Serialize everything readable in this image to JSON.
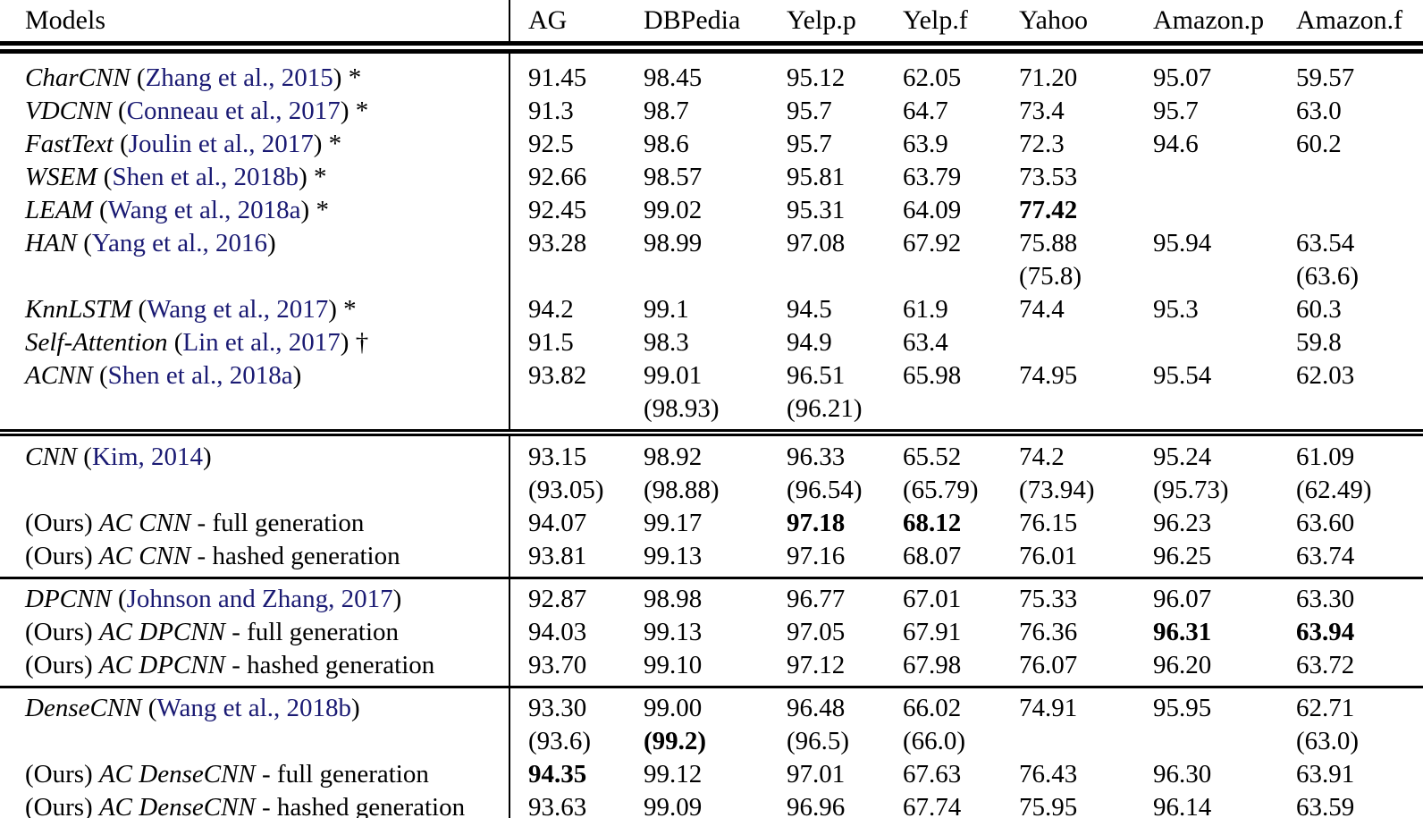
{
  "styles": {
    "citation_color": "#1a1a73",
    "text_color": "#000000",
    "background_color": "#ffffff"
  },
  "header": {
    "models_label": "Models",
    "datasets": [
      "AG",
      "DBPedia",
      "Yelp.p",
      "Yelp.f",
      "Yahoo",
      "Amazon.p",
      "Amazon.f"
    ]
  },
  "sections": [
    {
      "rows": [
        {
          "model": [
            {
              "t": "CharCNN",
              "s": "i"
            },
            {
              "t": " (",
              "s": "p"
            },
            {
              "t": "Zhang et al., 2015",
              "s": "c"
            },
            {
              "t": ") *",
              "s": "p"
            }
          ],
          "cells": [
            {
              "v": "91.45"
            },
            {
              "v": "98.45"
            },
            {
              "v": "95.12"
            },
            {
              "v": "62.05"
            },
            {
              "v": "71.20"
            },
            {
              "v": "95.07"
            },
            {
              "v": "59.57"
            }
          ]
        },
        {
          "model": [
            {
              "t": "VDCNN",
              "s": "i"
            },
            {
              "t": " (",
              "s": "p"
            },
            {
              "t": "Conneau et al., 2017",
              "s": "c"
            },
            {
              "t": ") *",
              "s": "p"
            }
          ],
          "cells": [
            {
              "v": "91.3"
            },
            {
              "v": "98.7"
            },
            {
              "v": "95.7"
            },
            {
              "v": "64.7"
            },
            {
              "v": "73.4"
            },
            {
              "v": "95.7"
            },
            {
              "v": "63.0"
            }
          ]
        },
        {
          "model": [
            {
              "t": "FastText",
              "s": "i"
            },
            {
              "t": " (",
              "s": "p"
            },
            {
              "t": "Joulin et al., 2017",
              "s": "c"
            },
            {
              "t": ") *",
              "s": "p"
            }
          ],
          "cells": [
            {
              "v": "92.5"
            },
            {
              "v": "98.6"
            },
            {
              "v": "95.7"
            },
            {
              "v": "63.9"
            },
            {
              "v": "72.3"
            },
            {
              "v": "94.6"
            },
            {
              "v": "60.2"
            }
          ]
        },
        {
          "model": [
            {
              "t": "WSEM",
              "s": "i"
            },
            {
              "t": " (",
              "s": "p"
            },
            {
              "t": "Shen et al., 2018b",
              "s": "c"
            },
            {
              "t": ") *",
              "s": "p"
            }
          ],
          "cells": [
            {
              "v": "92.66"
            },
            {
              "v": "98.57"
            },
            {
              "v": "95.81"
            },
            {
              "v": "63.79"
            },
            {
              "v": "73.53"
            },
            {
              "v": ""
            },
            {
              "v": ""
            }
          ]
        },
        {
          "model": [
            {
              "t": "LEAM",
              "s": "i"
            },
            {
              "t": " (",
              "s": "p"
            },
            {
              "t": "Wang et al., 2018a",
              "s": "c"
            },
            {
              "t": ") *",
              "s": "p"
            }
          ],
          "cells": [
            {
              "v": "92.45"
            },
            {
              "v": "99.02"
            },
            {
              "v": "95.31"
            },
            {
              "v": "64.09"
            },
            {
              "v": "77.42",
              "b": true
            },
            {
              "v": ""
            },
            {
              "v": ""
            }
          ]
        },
        {
          "model": [
            {
              "t": "HAN",
              "s": "i"
            },
            {
              "t": " (",
              "s": "p"
            },
            {
              "t": "Yang et al., 2016",
              "s": "c"
            },
            {
              "t": ")",
              "s": "p"
            }
          ],
          "cells": [
            {
              "v": "93.28"
            },
            {
              "v": "98.99"
            },
            {
              "v": "97.08"
            },
            {
              "v": "67.92"
            },
            {
              "v": "75.88",
              "sub": "(75.8)"
            },
            {
              "v": "95.94"
            },
            {
              "v": "63.54",
              "sub": "(63.6)"
            }
          ]
        },
        {
          "model": [
            {
              "t": "KnnLSTM",
              "s": "i"
            },
            {
              "t": " (",
              "s": "p"
            },
            {
              "t": "Wang et al., 2017",
              "s": "c"
            },
            {
              "t": ") *",
              "s": "p"
            }
          ],
          "cells": [
            {
              "v": "94.2"
            },
            {
              "v": "99.1"
            },
            {
              "v": "94.5"
            },
            {
              "v": "61.9"
            },
            {
              "v": "74.4"
            },
            {
              "v": "95.3"
            },
            {
              "v": "60.3"
            }
          ]
        },
        {
          "model": [
            {
              "t": "Self-Attention",
              "s": "i"
            },
            {
              "t": " (",
              "s": "p"
            },
            {
              "t": "Lin et al., 2017",
              "s": "c"
            },
            {
              "t": ") †",
              "s": "p"
            }
          ],
          "cells": [
            {
              "v": "91.5"
            },
            {
              "v": "98.3"
            },
            {
              "v": "94.9"
            },
            {
              "v": "63.4"
            },
            {
              "v": ""
            },
            {
              "v": ""
            },
            {
              "v": "59.8"
            }
          ]
        },
        {
          "model": [
            {
              "t": "ACNN",
              "s": "i"
            },
            {
              "t": " (",
              "s": "p"
            },
            {
              "t": "Shen et al., 2018a",
              "s": "c"
            },
            {
              "t": ")",
              "s": "p"
            }
          ],
          "cells": [
            {
              "v": "93.82"
            },
            {
              "v": "99.01",
              "sub": "(98.93)"
            },
            {
              "v": "96.51",
              "sub": "(96.21)"
            },
            {
              "v": "65.98"
            },
            {
              "v": "74.95"
            },
            {
              "v": "95.54"
            },
            {
              "v": "62.03"
            }
          ]
        }
      ]
    },
    {
      "rows": [
        {
          "model": [
            {
              "t": "CNN",
              "s": "i"
            },
            {
              "t": " (",
              "s": "p"
            },
            {
              "t": "Kim, 2014",
              "s": "c"
            },
            {
              "t": ")",
              "s": "p"
            }
          ],
          "cells": [
            {
              "v": "93.15",
              "sub": "(93.05)"
            },
            {
              "v": "98.92",
              "sub": "(98.88)"
            },
            {
              "v": "96.33",
              "sub": "(96.54)"
            },
            {
              "v": "65.52",
              "sub": "(65.79)"
            },
            {
              "v": "74.2",
              "sub": "(73.94)"
            },
            {
              "v": "95.24",
              "sub": "(95.73)"
            },
            {
              "v": "61.09",
              "sub": "(62.49)"
            }
          ]
        },
        {
          "model": [
            {
              "t": "(Ours) ",
              "s": "p"
            },
            {
              "t": "AC CNN",
              "s": "i"
            },
            {
              "t": " - full generation",
              "s": "p"
            }
          ],
          "cells": [
            {
              "v": "94.07"
            },
            {
              "v": "99.17"
            },
            {
              "v": "97.18",
              "b": true
            },
            {
              "v": "68.12",
              "b": true
            },
            {
              "v": "76.15"
            },
            {
              "v": "96.23"
            },
            {
              "v": "63.60"
            }
          ]
        },
        {
          "model": [
            {
              "t": "(Ours) ",
              "s": "p"
            },
            {
              "t": "AC CNN",
              "s": "i"
            },
            {
              "t": " - hashed generation",
              "s": "p"
            }
          ],
          "cells": [
            {
              "v": "93.81"
            },
            {
              "v": "99.13"
            },
            {
              "v": "97.16"
            },
            {
              "v": "68.07"
            },
            {
              "v": "76.01"
            },
            {
              "v": "96.25"
            },
            {
              "v": "63.74"
            }
          ]
        }
      ]
    },
    {
      "rows": [
        {
          "model": [
            {
              "t": "DPCNN",
              "s": "i"
            },
            {
              "t": " (",
              "s": "p"
            },
            {
              "t": "Johnson and Zhang, 2017",
              "s": "c"
            },
            {
              "t": ")",
              "s": "p"
            }
          ],
          "cells": [
            {
              "v": "92.87"
            },
            {
              "v": "98.98"
            },
            {
              "v": "96.77"
            },
            {
              "v": "67.01"
            },
            {
              "v": "75.33"
            },
            {
              "v": "96.07"
            },
            {
              "v": "63.30"
            }
          ]
        },
        {
          "model": [
            {
              "t": "(Ours) ",
              "s": "p"
            },
            {
              "t": "AC DPCNN",
              "s": "i"
            },
            {
              "t": " - full generation",
              "s": "p"
            }
          ],
          "cells": [
            {
              "v": "94.03"
            },
            {
              "v": "99.13"
            },
            {
              "v": "97.05"
            },
            {
              "v": "67.91"
            },
            {
              "v": "76.36"
            },
            {
              "v": "96.31",
              "b": true
            },
            {
              "v": "63.94",
              "b": true
            }
          ]
        },
        {
          "model": [
            {
              "t": "(Ours) ",
              "s": "p"
            },
            {
              "t": "AC DPCNN",
              "s": "i"
            },
            {
              "t": " - hashed generation",
              "s": "p"
            }
          ],
          "cells": [
            {
              "v": "93.70"
            },
            {
              "v": "99.10"
            },
            {
              "v": "97.12"
            },
            {
              "v": "67.98"
            },
            {
              "v": "76.07"
            },
            {
              "v": "96.20"
            },
            {
              "v": "63.72"
            }
          ]
        }
      ]
    },
    {
      "rows": [
        {
          "model": [
            {
              "t": "DenseCNN",
              "s": "i"
            },
            {
              "t": " (",
              "s": "p"
            },
            {
              "t": "Wang et al., 2018b",
              "s": "c"
            },
            {
              "t": ")",
              "s": "p"
            }
          ],
          "cells": [
            {
              "v": "93.30",
              "sub": "(93.6)"
            },
            {
              "v": "99.00",
              "sub": "(99.2)",
              "subB": true
            },
            {
              "v": "96.48",
              "sub": "(96.5)"
            },
            {
              "v": "66.02",
              "sub": "(66.0)"
            },
            {
              "v": "74.91"
            },
            {
              "v": "95.95"
            },
            {
              "v": "62.71",
              "sub": "(63.0)"
            }
          ]
        },
        {
          "model": [
            {
              "t": "(Ours) ",
              "s": "p"
            },
            {
              "t": "AC DenseCNN",
              "s": "i"
            },
            {
              "t": " - full generation",
              "s": "p"
            }
          ],
          "cells": [
            {
              "v": "94.35",
              "b": true
            },
            {
              "v": "99.12"
            },
            {
              "v": "97.01"
            },
            {
              "v": "67.63"
            },
            {
              "v": "76.43"
            },
            {
              "v": "96.30"
            },
            {
              "v": "63.91"
            }
          ]
        },
        {
          "model": [
            {
              "t": "(Ours) ",
              "s": "p"
            },
            {
              "t": "AC DenseCNN",
              "s": "i"
            },
            {
              "t": " - hashed generation",
              "s": "p"
            }
          ],
          "cells": [
            {
              "v": "93.63"
            },
            {
              "v": "99.09"
            },
            {
              "v": "96.96"
            },
            {
              "v": "67.74"
            },
            {
              "v": "75.95"
            },
            {
              "v": "96.14"
            },
            {
              "v": "63.59"
            }
          ]
        }
      ]
    }
  ]
}
